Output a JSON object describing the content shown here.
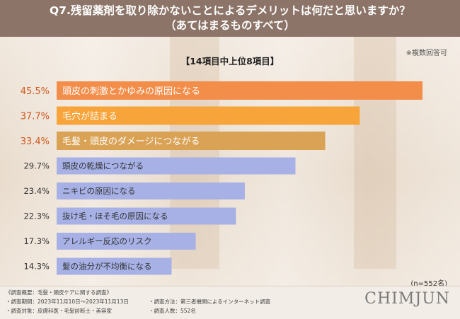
{
  "header": {
    "title": "Q7.残留薬剤を取り除かないことによるデメリットは何だと思いますか？",
    "title_line2": "（あてはまるものすべて）"
  },
  "subtitle": "【14項目中上位8項目】",
  "note_multi": "※複数回答可",
  "n_note": "(n=552名)",
  "colors": {
    "top": "#f28d4a",
    "second": "#f7a43a",
    "third": "#d9a255",
    "rest": "#a7b1e6",
    "top_text": "#d15a1f"
  },
  "chart_data": {
    "type": "bar",
    "orientation": "horizontal",
    "categories": [
      "頭皮の刺激とかゆみの原因になる",
      "毛穴が詰まる",
      "毛髪・頭皮のダメージにつながる",
      "頭皮の乾燥につながる",
      "ニキビの原因になる",
      "抜け毛・ほそ毛の原因になる",
      "アレルギー反応のリスク",
      "髪の油分が不均衡になる"
    ],
    "values": [
      45.5,
      37.7,
      33.4,
      29.7,
      23.4,
      22.3,
      17.3,
      14.3
    ],
    "value_labels": [
      "45.5%",
      "37.7%",
      "33.4%",
      "29.7%",
      "23.4%",
      "22.3%",
      "17.3%",
      "14.3%"
    ],
    "xlim": [
      0,
      50
    ],
    "title": "Q7.残留薬剤を取り除かないことによるデメリットは何だと思いますか？（あてはまるものすべて）",
    "xlabel": "",
    "ylabel": ""
  },
  "footer": {
    "overview": "《調査概要：毛髪・頭皮ケアに関する調査》",
    "period": "・調査期間：2023年11月10日〜2023年11月13日",
    "target": "・調査対象：皮膚科医・毛髪診断士・美容家",
    "method": "・調査方法：第三者機関によるインターネット調査",
    "count": "・調査人数：552名"
  },
  "logo": "CHIMJUN"
}
